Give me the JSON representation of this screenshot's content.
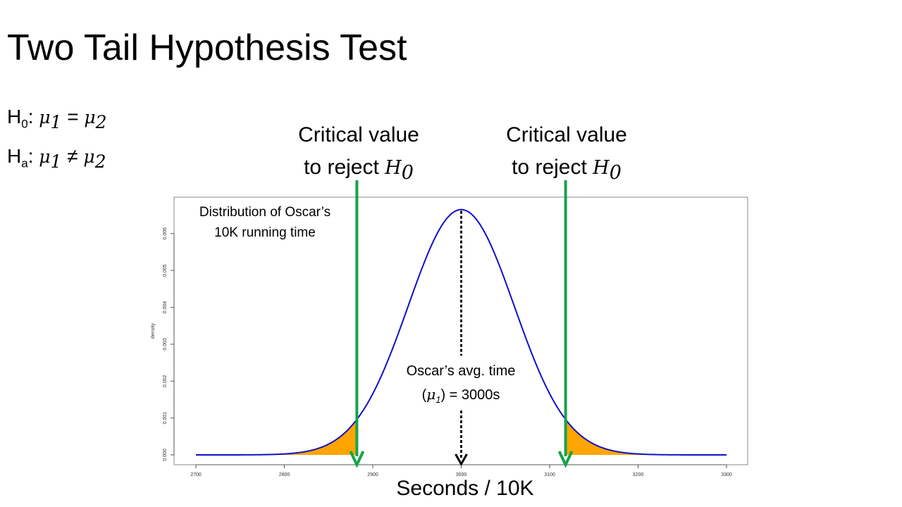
{
  "slide": {
    "title": "Two Tail Hypothesis Test",
    "h0": {
      "letter": "H",
      "subscript": "0",
      "colon": ":",
      "lhs_symbol": "μ",
      "lhs_sub": "1",
      "operator": "=",
      "rhs_symbol": "μ",
      "rhs_sub": "2"
    },
    "ha": {
      "letter": "H",
      "subscript": "a",
      "colon": ":",
      "lhs_symbol": "μ",
      "lhs_sub": "1",
      "operator": "≠",
      "rhs_symbol": "μ",
      "rhs_sub": "2"
    },
    "critical_left": {
      "line1": "Critical value",
      "line2": "to reject",
      "symbol": "H",
      "sub": "0"
    },
    "critical_right": {
      "line1": "Critical value",
      "line2": "to reject",
      "symbol": "H",
      "sub": "0"
    },
    "x_title": "Seconds / 10K"
  },
  "annotations": {
    "distribution_line1": "Distribution of Oscar’s",
    "distribution_line2": "10K running time",
    "mean_line1": "Oscar’s avg. time",
    "mean_open": "(",
    "mean_symbol": "μ",
    "mean_sub": "1",
    "mean_rest": ") =  3000s"
  },
  "chart_data": {
    "type": "area",
    "distribution": {
      "kind": "normal",
      "mean": 3000,
      "sd": 60
    },
    "x_range": [
      2700,
      3300
    ],
    "y_range": [
      0,
      0.0067
    ],
    "x_ticks": [
      2700,
      2800,
      2900,
      3000,
      3100,
      3200,
      3300
    ],
    "x_tick_labels": [
      "2700",
      "2800",
      "2900",
      "3000",
      "3100",
      "3200",
      "3300"
    ],
    "y_ticks": [
      0,
      0.001,
      0.002,
      0.003,
      0.004,
      0.005,
      0.006
    ],
    "y_tick_labels": [
      "0.000",
      "0.001",
      "0.002",
      "0.003",
      "0.004",
      "0.005",
      "0.006"
    ],
    "ylabel": "density",
    "xlabel": "Seconds / 10K",
    "critical_values": [
      2882,
      3118
    ],
    "mean_marker": 3000,
    "grid": false,
    "colors": {
      "curve": "#1010c8",
      "tail_fill": "#ffa500",
      "critical_line": "#17a34a",
      "mean_arrow": "#000000"
    }
  }
}
